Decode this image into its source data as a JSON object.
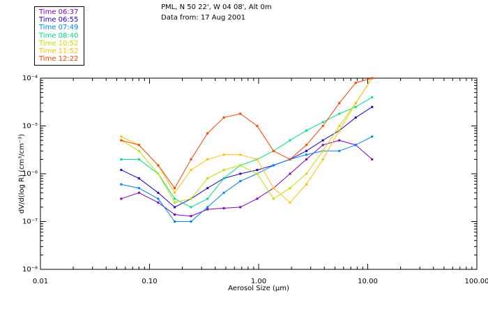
{
  "header": {
    "location": "PML, N 50 22', W 04 08', Alt 0m",
    "date": "Data from: 17 Aug 2001"
  },
  "colors": {
    "axis": "#000000",
    "text": "#000000"
  },
  "chart_data": {
    "type": "line",
    "title": "PML, N 50 22', W 04 08', Alt 0m",
    "subtitle": "Data from: 17 Aug 2001",
    "xlabel": "Aerosol Size (µm)",
    "ylabel": "dV/d(log R) (cm³/cm⁻³)",
    "xscale": "log",
    "yscale": "log",
    "xlim": [
      0.01,
      100
    ],
    "ylim": [
      1e-08,
      0.0001
    ],
    "grid": false,
    "legend_position": "top-left (outside plot)",
    "x_tick_labels": [
      "0.01",
      "0.10",
      "1.00",
      "10.00",
      "100.00"
    ],
    "x_tick_values": [
      0.01,
      0.1,
      1,
      10,
      100
    ],
    "y_tick_labels": [
      "10⁻⁸",
      "10⁻⁷",
      "10⁻⁶",
      "10⁻⁵",
      "10⁻⁴"
    ],
    "y_tick_values": [
      1e-08,
      1e-07,
      1e-06,
      1e-05,
      0.0001
    ],
    "x": [
      0.055,
      0.08,
      0.12,
      0.17,
      0.24,
      0.34,
      0.48,
      0.68,
      0.97,
      1.37,
      1.94,
      2.74,
      3.88,
      5.49,
      7.76,
      10.97
    ],
    "series": [
      {
        "name": "Time 06:37",
        "color": "#8000c0",
        "values": [
          3e-07,
          4e-07,
          2.5e-07,
          1.4e-07,
          1.3e-07,
          1.8e-07,
          1.9e-07,
          2e-07,
          3e-07,
          5e-07,
          1e-06,
          2e-06,
          4e-06,
          5e-06,
          4e-06,
          2e-06
        ]
      },
      {
        "name": "Time 06:55",
        "color": "#2000d0",
        "values": [
          1.2e-06,
          8e-07,
          4e-07,
          2e-07,
          3e-07,
          5e-07,
          8e-07,
          1e-06,
          1.2e-06,
          1.5e-06,
          2e-06,
          3e-06,
          5e-06,
          8e-06,
          1.5e-05,
          2.5e-05
        ]
      },
      {
        "name": "Time 07:49",
        "color": "#0080ff",
        "values": [
          6e-07,
          5e-07,
          3e-07,
          1e-07,
          1e-07,
          2e-07,
          4e-07,
          7e-07,
          1e-06,
          1.5e-06,
          2e-06,
          2.5e-06,
          3e-06,
          3e-06,
          4e-06,
          6e-06
        ]
      },
      {
        "name": "Time 08:40",
        "color": "#00e080",
        "values": [
          2e-06,
          2e-06,
          1e-06,
          3e-07,
          2e-07,
          3e-07,
          8e-07,
          1.5e-06,
          2e-06,
          3e-06,
          5e-06,
          8e-06,
          1.2e-05,
          1.8e-05,
          2.5e-05,
          4e-05
        ]
      },
      {
        "name": "Time 10:52",
        "color": "#c0e000",
        "values": [
          5e-06,
          3e-06,
          1e-06,
          2.5e-07,
          3e-07,
          8e-07,
          1.2e-06,
          1.5e-06,
          1e-06,
          3e-07,
          5e-07,
          1e-06,
          3e-06,
          1e-05,
          3e-05,
          0.0001
        ]
      },
      {
        "name": "Time 11:52",
        "color": "#ffc000",
        "values": [
          6e-06,
          4e-06,
          1.5e-06,
          4e-07,
          1.2e-06,
          2e-06,
          2.5e-06,
          2.5e-06,
          2e-06,
          5e-07,
          2.5e-07,
          6e-07,
          2e-06,
          8e-06,
          3e-05,
          0.0001
        ]
      },
      {
        "name": "Time 12:22",
        "color": "#ff4000",
        "values": [
          5e-06,
          4e-06,
          1.5e-06,
          5e-07,
          2e-06,
          7e-06,
          1.5e-05,
          1.8e-05,
          1e-05,
          3e-06,
          2e-06,
          4e-06,
          1e-05,
          3e-05,
          8e-05,
          0.0001
        ]
      }
    ]
  }
}
